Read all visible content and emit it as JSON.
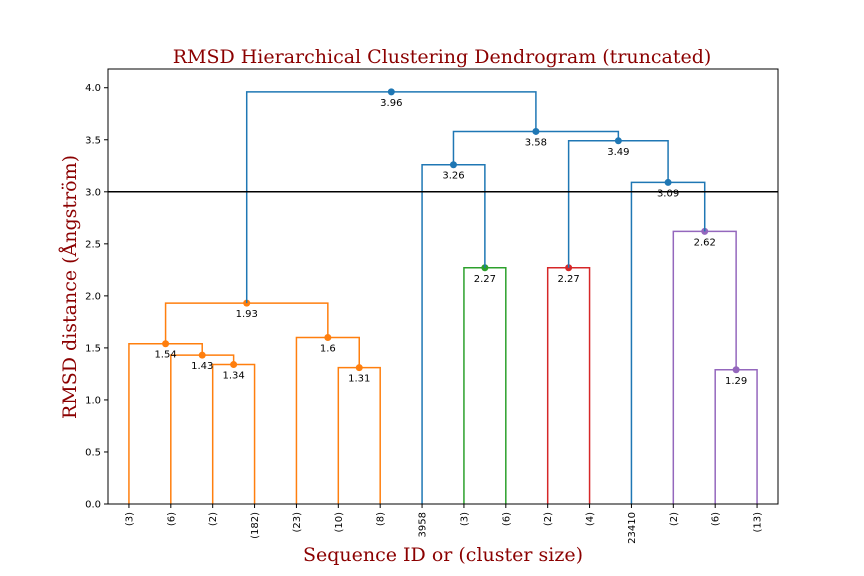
{
  "chart_data": {
    "type": "dendrogram",
    "title": "RMSD Hierarchical Clustering Dendrogram (truncated)",
    "xlabel": "Sequence ID or (cluster size)",
    "ylabel": "RMSD distance (Ångström)",
    "ylim": [
      0,
      4.18
    ],
    "yticks": [
      "0.0",
      "0.5",
      "1.0",
      "1.5",
      "2.0",
      "2.5",
      "3.0",
      "3.5",
      "4.0"
    ],
    "ytick_values": [
      0,
      0.5,
      1.0,
      1.5,
      2.0,
      2.5,
      3.0,
      3.5,
      4.0
    ],
    "cut_threshold": 3.0,
    "leaves": [
      "(3)",
      "(6)",
      "(2)",
      "(182)",
      "(23)",
      "(10)",
      "(8)",
      "3958",
      "(3)",
      "(6)",
      "(2)",
      "(4)",
      "23410",
      "(2)",
      "(6)",
      "(13)"
    ],
    "colors": {
      "orange": "#ff7f0e",
      "blue": "#1f77b4",
      "green": "#2ca02c",
      "red": "#d62728",
      "purple": "#9467bd",
      "threshold": "#000000",
      "title": "#8b0000"
    },
    "merges": [
      {
        "left": 2,
        "right": 3,
        "height": 1.34,
        "label": "1.34",
        "color": "orange"
      },
      {
        "left": 1,
        "right": 2.5,
        "height": 1.43,
        "label": "1.43",
        "color": "orange"
      },
      {
        "left": 0,
        "right": 1.75,
        "height": 1.54,
        "label": "1.54",
        "color": "orange"
      },
      {
        "left": 5,
        "right": 6,
        "height": 1.31,
        "label": "1.31",
        "color": "orange"
      },
      {
        "left": 4,
        "right": 5.5,
        "height": 1.6,
        "label": "1.6",
        "color": "orange"
      },
      {
        "left": 0.875,
        "right": 4.75,
        "height": 1.93,
        "label": "1.93",
        "color": "orange"
      },
      {
        "left": 8,
        "right": 9,
        "height": 2.27,
        "label": "2.27",
        "color": "green"
      },
      {
        "left": 7,
        "right": 8.5,
        "height": 3.26,
        "label": "3.26",
        "color": "blue"
      },
      {
        "left": 10,
        "right": 11,
        "height": 2.27,
        "label": "2.27",
        "color": "red"
      },
      {
        "left": 14,
        "right": 15,
        "height": 1.29,
        "label": "1.29",
        "color": "purple"
      },
      {
        "left": 13,
        "right": 14.5,
        "height": 2.62,
        "label": "2.62",
        "color": "purple"
      },
      {
        "left": 12,
        "right": 13.75,
        "height": 3.09,
        "label": "3.09",
        "color": "blue"
      },
      {
        "left": 10.5,
        "right": 12.875,
        "height": 3.49,
        "label": "3.49",
        "color": "blue"
      },
      {
        "left": 7.75,
        "right": 11.6875,
        "height": 3.58,
        "label": "3.58",
        "color": "blue"
      },
      {
        "left": 2.8125,
        "right": 9.71875,
        "height": 3.96,
        "label": "3.96",
        "color": "blue"
      }
    ]
  }
}
